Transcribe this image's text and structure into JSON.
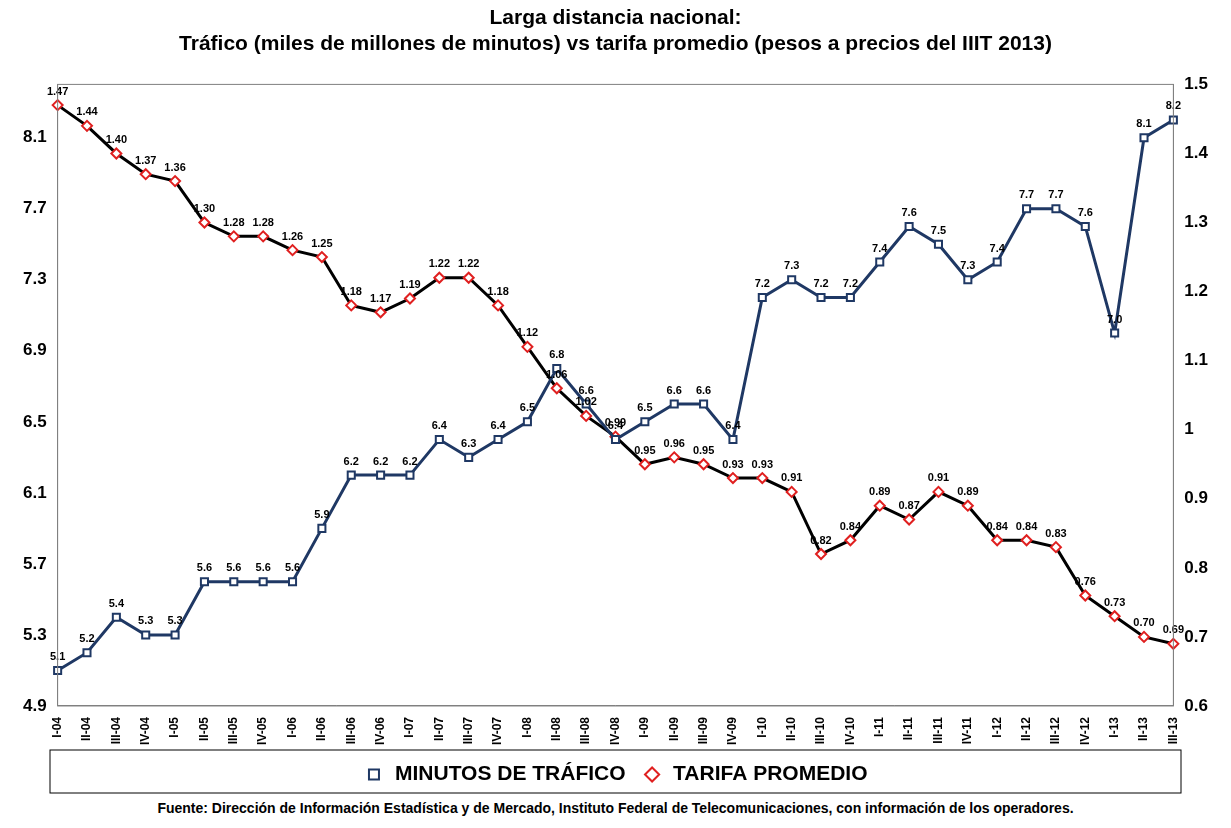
{
  "chart_data": {
    "type": "line",
    "title": [
      "Larga distancia nacional:",
      "Tráfico (miles de millones de minutos) vs tarifa promedio (pesos a precios del IIIT 2013)"
    ],
    "source": "Fuente: Dirección de Información Estadística y de Mercado, Instituto Federal de Telecomunicaciones, con información de los operadores.",
    "categories": [
      "I-04",
      "II-04",
      "III-04",
      "IV-04",
      "I-05",
      "II-05",
      "III-05",
      "IV-05",
      "I-06",
      "II-06",
      "III-06",
      "IV-06",
      "I-07",
      "II-07",
      "III-07",
      "IV-07",
      "I-08",
      "II-08",
      "III-08",
      "IV-08",
      "I-09",
      "II-09",
      "III-09",
      "IV-09",
      "I-10",
      "II-10",
      "III-10",
      "IV-10",
      "I-11",
      "II-11",
      "III-11",
      "IV-11",
      "I-12",
      "II-12",
      "III-12",
      "IV-12",
      "I-13",
      "II-13",
      "III-13"
    ],
    "series": [
      {
        "name": "MINUTOS DE TRÁFICO",
        "color": "#1f3864",
        "marker": "square",
        "axis": "y",
        "values": [
          5.1,
          5.2,
          5.4,
          5.3,
          5.3,
          5.6,
          5.6,
          5.6,
          5.6,
          5.9,
          6.2,
          6.2,
          6.2,
          6.4,
          6.3,
          6.4,
          6.5,
          6.8,
          6.6,
          6.4,
          6.5,
          6.6,
          6.6,
          6.4,
          7.2,
          7.3,
          7.2,
          7.2,
          7.4,
          7.6,
          7.5,
          7.3,
          7.4,
          7.7,
          7.7,
          7.6,
          7.0,
          8.1,
          8.2
        ],
        "value_labels": [
          "5.1",
          "5.2",
          "5.4",
          "5.3",
          "5.3",
          "5.6",
          "5.6",
          "5.6",
          "5.6",
          "5.9",
          "6.2",
          "6.2",
          "6.2",
          "6.4",
          "6.3",
          "6.4",
          "6.5",
          "6.8",
          "6.6",
          "6.4",
          "6.5",
          "6.6",
          "6.6",
          "6.4",
          "7.2",
          "7.3",
          "7.2",
          "7.2",
          "7.4",
          "7.6",
          "7.5",
          "7.3",
          "7.4",
          "7.7",
          "7.7",
          "7.6",
          "7.0",
          "8.1",
          "8.2"
        ]
      },
      {
        "name": "TARIFA PROMEDIO",
        "color": "#000000",
        "marker": "diamond",
        "axis": "y2",
        "values": [
          1.47,
          1.44,
          1.4,
          1.37,
          1.36,
          1.3,
          1.28,
          1.28,
          1.26,
          1.25,
          1.18,
          1.17,
          1.19,
          1.22,
          1.22,
          1.18,
          1.12,
          1.06,
          1.02,
          0.99,
          0.95,
          0.96,
          0.95,
          0.93,
          0.93,
          0.91,
          0.82,
          0.84,
          0.89,
          0.87,
          0.91,
          0.89,
          0.84,
          0.84,
          0.83,
          0.76,
          0.73,
          0.7,
          0.69
        ],
        "value_labels": [
          "1.47",
          "1.44",
          "1.40",
          "1.37",
          "1.36",
          "1.30",
          "1.28",
          "1.28",
          "1.26",
          "1.25",
          "1.18",
          "1.17",
          "1.19",
          "1.22",
          "1.22",
          "1.18",
          "1.12",
          "1.06",
          "1.02",
          "0.99",
          "0.95",
          "0.96",
          "0.95",
          "0.93",
          "0.93",
          "0.91",
          "0.82",
          "0.84",
          "0.89",
          "0.87",
          "0.91",
          "0.89",
          "0.84",
          "0.84",
          "0.83",
          "0.76",
          "0.73",
          "0.70",
          "0.69"
        ]
      }
    ],
    "ylim": [
      4.9,
      8.4
    ],
    "yticks": [
      4.9,
      5.3,
      5.7,
      6.1,
      6.5,
      6.9,
      7.3,
      7.7,
      8.1
    ],
    "y2lim": [
      0.6,
      1.5
    ],
    "y2ticks": [
      0.6,
      0.7,
      0.8,
      0.9,
      1.0,
      1.1,
      1.2,
      1.3,
      1.4,
      1.5
    ],
    "grid": false,
    "legend": "bottom",
    "data_labels": true
  }
}
